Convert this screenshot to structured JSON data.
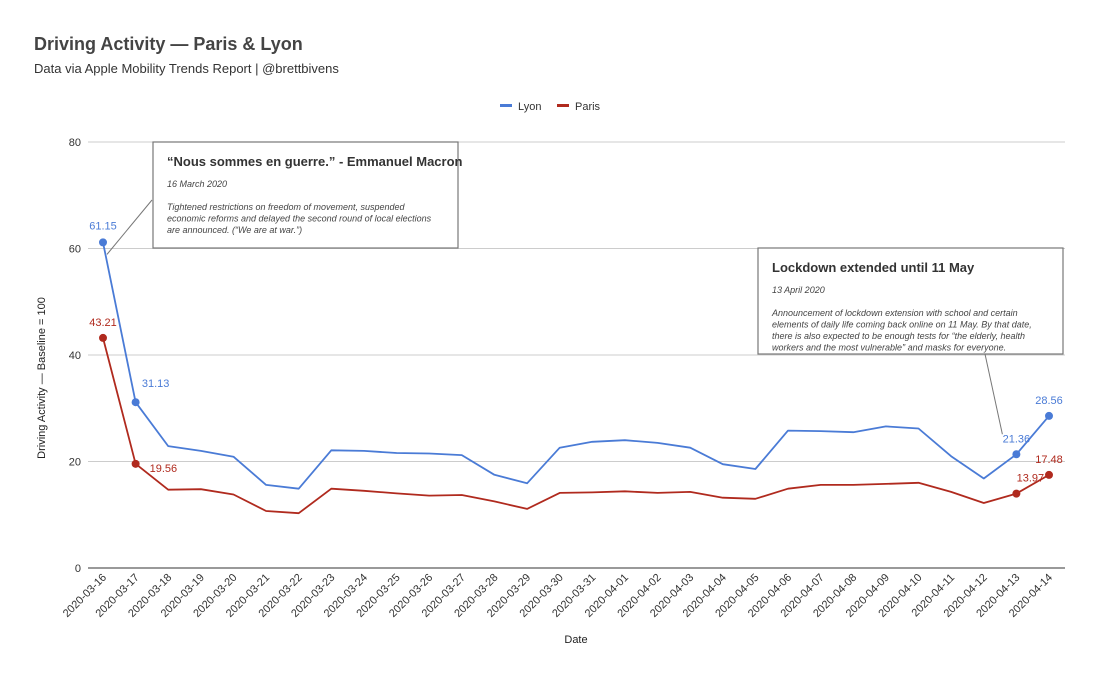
{
  "chart_data": {
    "type": "line",
    "title": "Driving Activity — Paris & Lyon",
    "subtitle": "Data via Apple Mobility Trends Report | @brettbivens",
    "xlabel": "Date",
    "ylabel": "Driving Activity — Baseline = 100",
    "ylim": [
      0,
      80
    ],
    "yticks": [
      0,
      20,
      40,
      60,
      80
    ],
    "grid": true,
    "legend_position": "top-center",
    "x": [
      "2020-03-16",
      "2020-03-17",
      "2020-03-18",
      "2020-03-19",
      "2020-03-20",
      "2020-03-21",
      "2020-03-22",
      "2020-03-23",
      "2020-03-24",
      "2020-03-25",
      "2020-03-26",
      "2020-03-27",
      "2020-03-28",
      "2020-03-29",
      "2020-03-30",
      "2020-03-31",
      "2020-04-01",
      "2020-04-02",
      "2020-04-03",
      "2020-04-04",
      "2020-04-05",
      "2020-04-06",
      "2020-04-07",
      "2020-04-08",
      "2020-04-09",
      "2020-04-10",
      "2020-04-11",
      "2020-04-12",
      "2020-04-13",
      "2020-04-14"
    ],
    "series": [
      {
        "name": "Lyon",
        "color": "#4a7bd6",
        "values": [
          61.15,
          31.13,
          22.9,
          22.0,
          20.9,
          15.6,
          14.9,
          22.1,
          22.0,
          21.6,
          21.5,
          21.2,
          17.5,
          15.9,
          22.6,
          23.7,
          24.0,
          23.5,
          22.6,
          19.5,
          18.6,
          25.8,
          25.7,
          25.5,
          26.6,
          26.2,
          21.0,
          16.8,
          21.36,
          28.56
        ],
        "labels": [
          {
            "index": 0,
            "text": "61.15"
          },
          {
            "index": 1,
            "text": "31.13"
          },
          {
            "index": 28,
            "text": "21.36"
          },
          {
            "index": 29,
            "text": "28.56"
          }
        ]
      },
      {
        "name": "Paris",
        "color": "#b02a1e",
        "values": [
          43.21,
          19.56,
          14.7,
          14.8,
          13.8,
          10.7,
          10.3,
          14.9,
          14.5,
          14.0,
          13.6,
          13.7,
          12.5,
          11.1,
          14.1,
          14.2,
          14.4,
          14.1,
          14.3,
          13.2,
          13.0,
          14.9,
          15.6,
          15.6,
          15.8,
          16.0,
          14.3,
          12.2,
          13.97,
          17.48
        ],
        "labels": [
          {
            "index": 0,
            "text": "43.21"
          },
          {
            "index": 1,
            "text": "19.56"
          },
          {
            "index": 28,
            "text": "13.97"
          },
          {
            "index": 29,
            "text": "17.48"
          }
        ]
      }
    ],
    "annotations": [
      {
        "title": "“Nous sommes en guerre.” - Emmanuel Macron",
        "date": "16 March 2020",
        "text": [
          "Tightened restrictions on freedom of movement, suspended",
          "economic reforms and delayed the second round of local elections",
          "are announced. (“We are at war.”)"
        ],
        "point_index": 0,
        "series": "Lyon"
      },
      {
        "title": "Lockdown extended until 11 May",
        "date": "13 April 2020",
        "text": [
          "Announcement of lockdown extension with school and certain",
          "elements of daily life coming back online on 11 May. By that date,",
          "there is also expected to be enough tests for “the elderly, health",
          "workers and the most vulnerable” and masks for everyone."
        ],
        "point_index": 28,
        "series": "Lyon"
      }
    ]
  }
}
